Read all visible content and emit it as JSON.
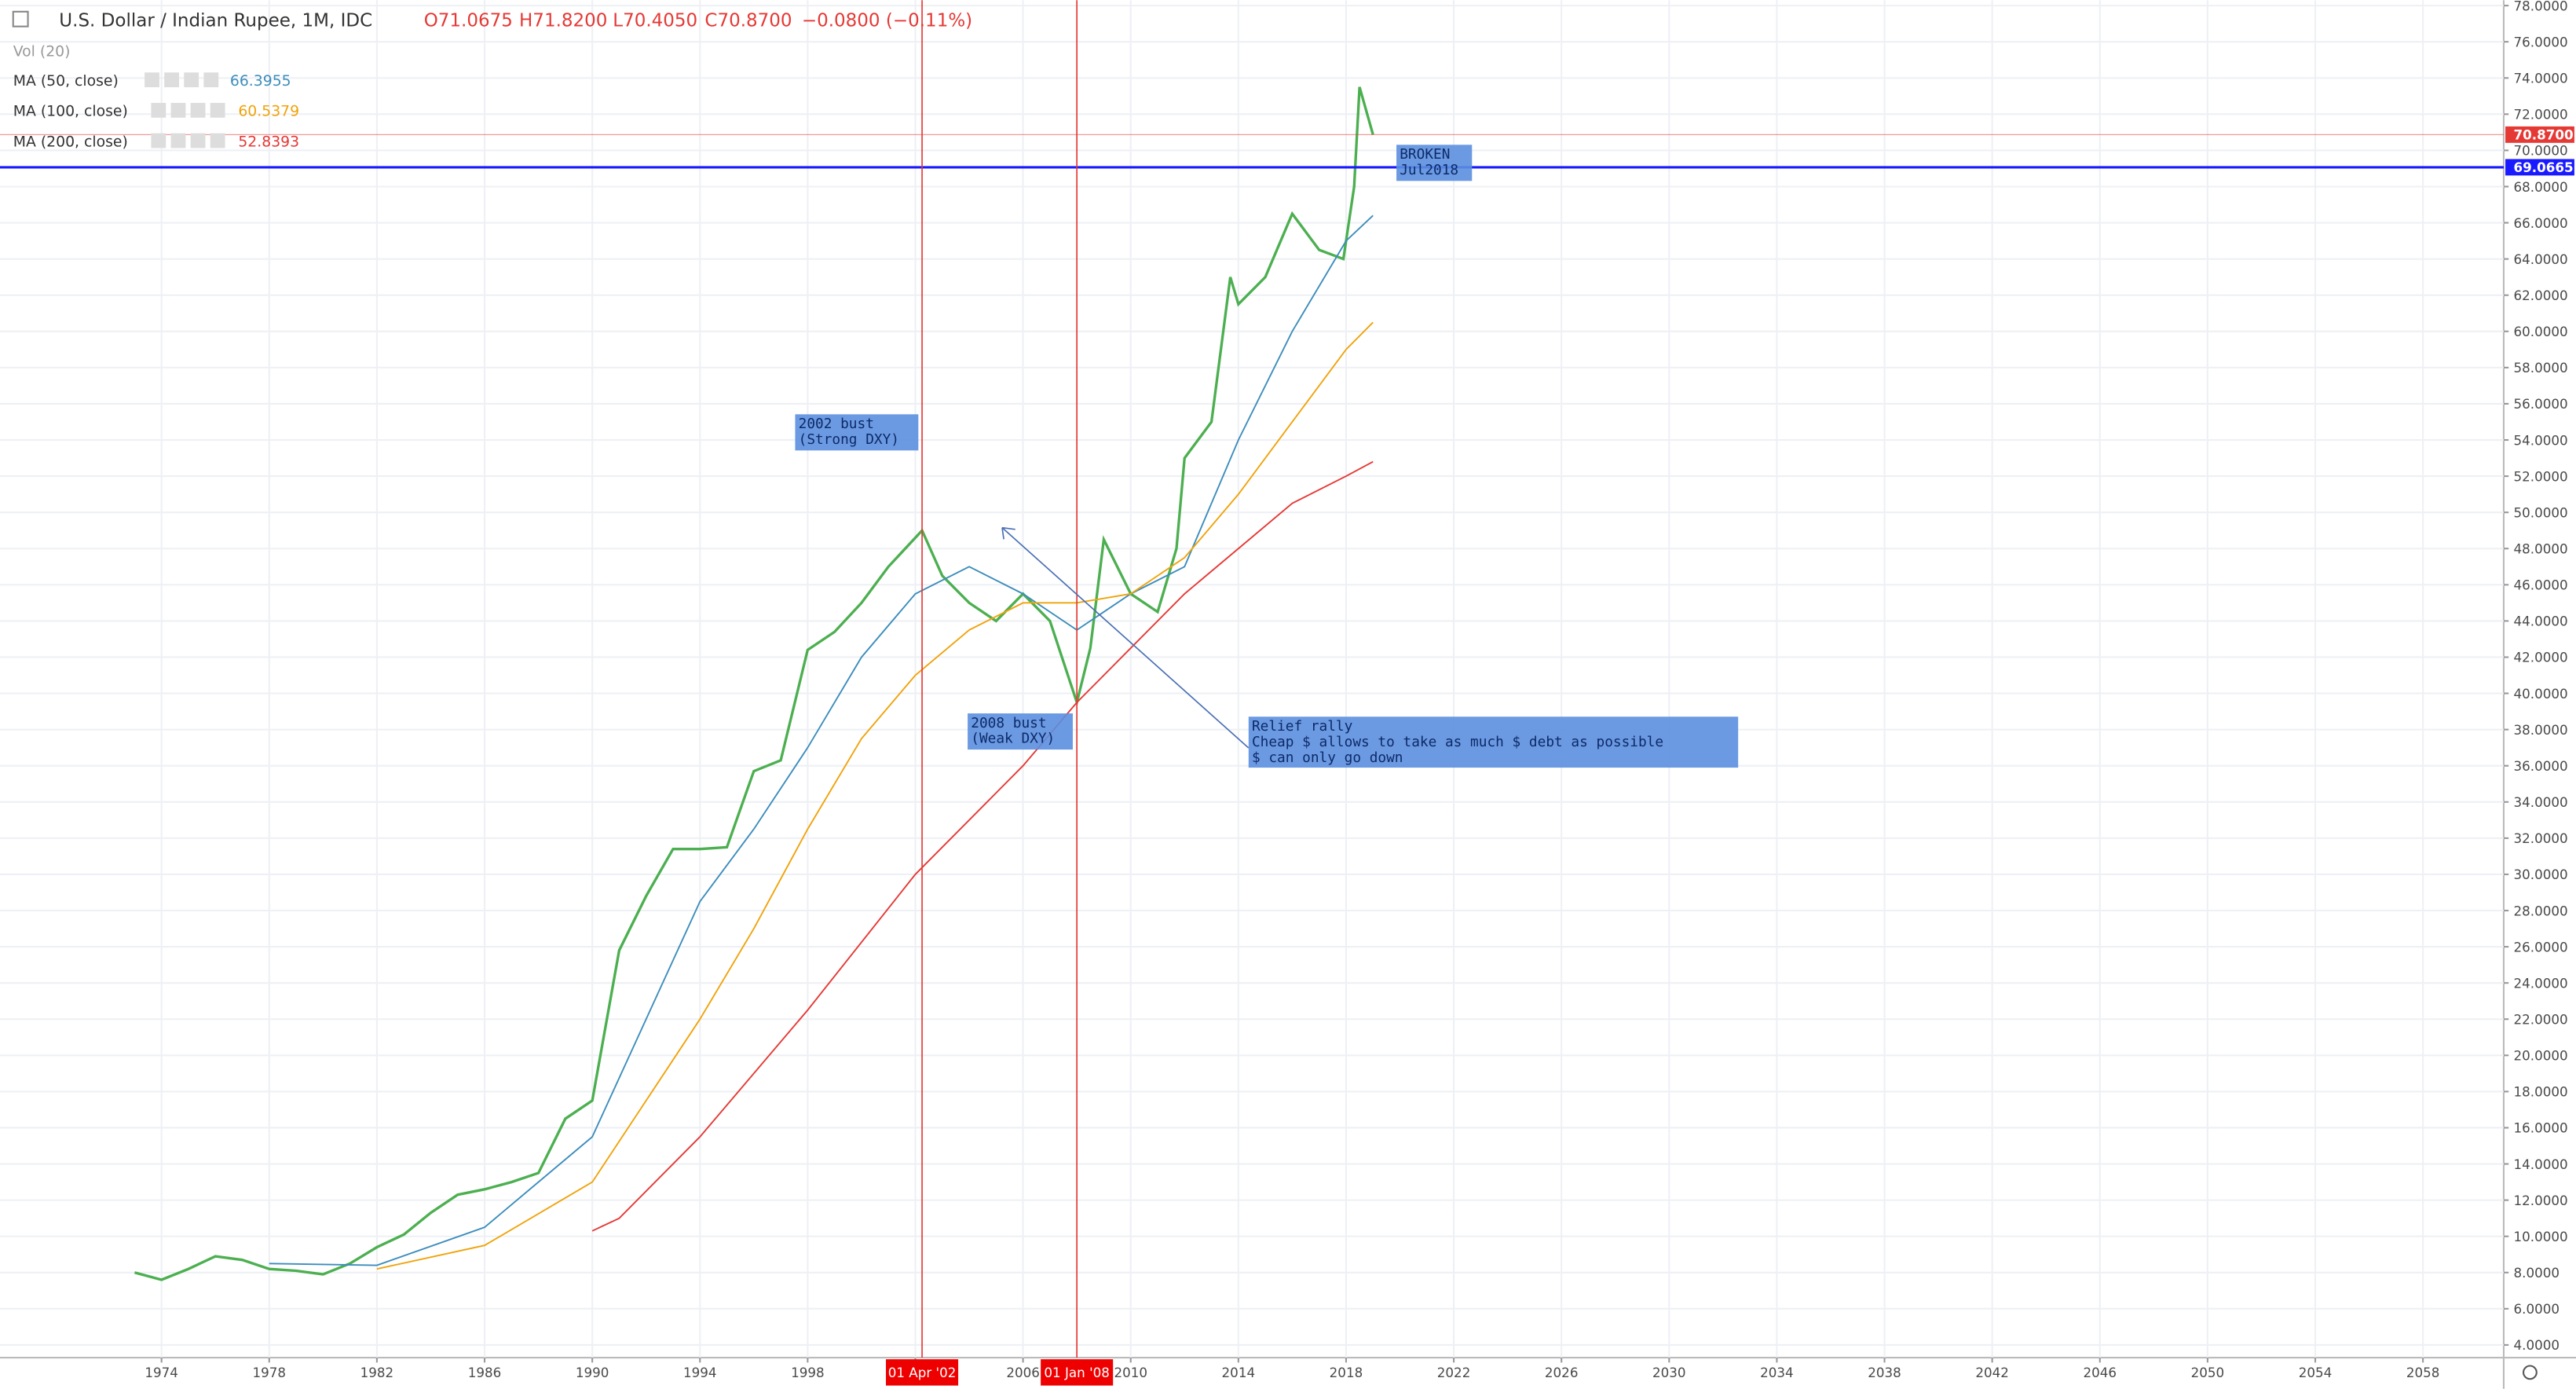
{
  "chart_data": {
    "type": "line",
    "header": {
      "title": "U.S. Dollar / Indian Rupee, 1M, IDC",
      "open": "O71.0675",
      "high": "H71.8200",
      "low": "L70.4050",
      "close": "C70.8700",
      "change": "−0.0800 (−0.11%)",
      "volume": "Vol (20)",
      "studies": [
        {
          "name": "MA (50, close)",
          "value": "66.3955",
          "color": "#3c8dbc"
        },
        {
          "name": "MA (100, close)",
          "value": "60.5379",
          "color": "#f0a30a"
        },
        {
          "name": "MA (200, close)",
          "value": "52.8393",
          "color": "#e53935"
        }
      ]
    },
    "xlim": [
      1968,
      2061
    ],
    "ylim": [
      3.3,
      78.3
    ],
    "xticks": [
      1974,
      1978,
      1982,
      1986,
      1990,
      1994,
      1998,
      2002,
      2006,
      2010,
      2014,
      2018,
      2022,
      2026,
      2030,
      2034,
      2038,
      2042,
      2046,
      2050,
      2054,
      2058
    ],
    "yticks": [
      {
        "value": 4,
        "label": "4.0000"
      },
      {
        "value": 6,
        "label": "6.0000"
      },
      {
        "value": 8,
        "label": "8.0000"
      },
      {
        "value": 10,
        "label": "10.0000"
      },
      {
        "value": 12,
        "label": "12.0000"
      },
      {
        "value": 14,
        "label": "14.0000"
      },
      {
        "value": 16,
        "label": "16.0000"
      },
      {
        "value": 18,
        "label": "18.0000"
      },
      {
        "value": 20,
        "label": "20.0000"
      },
      {
        "value": 22,
        "label": "22.0000"
      },
      {
        "value": 24,
        "label": "24.0000"
      },
      {
        "value": 26,
        "label": "26.0000"
      },
      {
        "value": 28,
        "label": "28.0000"
      },
      {
        "value": 30,
        "label": "30.0000"
      },
      {
        "value": 32,
        "label": "32.0000"
      },
      {
        "value": 34,
        "label": "34.0000"
      },
      {
        "value": 36,
        "label": "36.0000"
      },
      {
        "value": 38,
        "label": "38.0000"
      },
      {
        "value": 40,
        "label": "40.0000"
      },
      {
        "value": 42,
        "label": "42.0000"
      },
      {
        "value": 44,
        "label": "44.0000"
      },
      {
        "value": 46,
        "label": "46.0000"
      },
      {
        "value": 48,
        "label": "48.0000"
      },
      {
        "value": 50,
        "label": "50.0000"
      },
      {
        "value": 52,
        "label": "52.0000"
      },
      {
        "value": 54,
        "label": "54.0000"
      },
      {
        "value": 56,
        "label": "56.0000"
      },
      {
        "value": 58,
        "label": "58.0000"
      },
      {
        "value": 60,
        "label": "60.0000"
      },
      {
        "value": 62,
        "label": "62.0000"
      },
      {
        "value": 64,
        "label": "64.0000"
      },
      {
        "value": 66,
        "label": "66.0000"
      },
      {
        "value": 68,
        "label": "68.0000"
      },
      {
        "value": 70,
        "label": "70.0000"
      },
      {
        "value": 72,
        "label": "72.0000"
      },
      {
        "value": 74,
        "label": "74.0000"
      },
      {
        "value": 76,
        "label": "76.0000"
      },
      {
        "value": 78,
        "label": "78.0000"
      }
    ],
    "grid": true,
    "series": [
      {
        "name": "USDINR",
        "color": "#4caf50",
        "x": [
          1973,
          1974,
          1975,
          1976,
          1977,
          1978,
          1979,
          1980,
          1981,
          1982,
          1983,
          1984,
          1985,
          1986,
          1987,
          1988,
          1989,
          1990,
          1991,
          1992,
          1993,
          1994,
          1995,
          1996,
          1997,
          1998,
          1999,
          2000,
          2001,
          2002.25,
          2003,
          2004,
          2005,
          2006,
          2007,
          2008,
          2008.5,
          2009,
          2010,
          2011,
          2011.7,
          2012,
          2013,
          2013.7,
          2014,
          2015,
          2016,
          2017,
          2017.9,
          2018.3,
          2018.5,
          2019
        ],
        "values": [
          8.0,
          7.6,
          8.2,
          8.9,
          8.7,
          8.2,
          8.1,
          7.9,
          8.5,
          9.4,
          10.1,
          11.3,
          12.3,
          12.6,
          13.0,
          13.5,
          16.5,
          17.5,
          25.8,
          28.8,
          31.4,
          31.4,
          31.5,
          35.7,
          36.3,
          42.4,
          43.4,
          45.0,
          47.0,
          49.0,
          46.5,
          45.0,
          44.0,
          45.5,
          44.0,
          39.5,
          42.5,
          48.5,
          45.5,
          44.5,
          48.0,
          53.0,
          55.0,
          63.0,
          61.5,
          63.0,
          66.5,
          64.5,
          64.0,
          68.0,
          73.5,
          70.87
        ]
      },
      {
        "name": "MA (50, close)",
        "color": "#3c8dbc",
        "x": [
          1978,
          1982,
          1986,
          1990,
          1992,
          1994,
          1996,
          1998,
          2000,
          2002,
          2004,
          2006,
          2008,
          2010,
          2012,
          2014,
          2016,
          2018,
          2019
        ],
        "values": [
          8.5,
          8.4,
          10.5,
          15.5,
          22,
          28.5,
          32.5,
          37,
          42,
          45.5,
          47,
          45.5,
          43.5,
          45.5,
          47,
          54,
          60,
          65,
          66.4
        ]
      },
      {
        "name": "MA (100, close)",
        "color": "#f0a30a",
        "x": [
          1982,
          1986,
          1990,
          1992,
          1994,
          1996,
          1998,
          2000,
          2002,
          2004,
          2006,
          2008,
          2010,
          2012,
          2014,
          2016,
          2018,
          2019
        ],
        "values": [
          8.2,
          9.5,
          13,
          17.5,
          22,
          27,
          32.5,
          37.5,
          41,
          43.5,
          45,
          45,
          45.5,
          47.5,
          51,
          55,
          59,
          60.5
        ]
      },
      {
        "name": "MA (200, close)",
        "color": "#e53935",
        "x": [
          1990,
          1991,
          1994,
          1998,
          2002,
          2006,
          2008,
          2010,
          2012,
          2014,
          2016,
          2018,
          2019
        ],
        "values": [
          10.3,
          11,
          15.5,
          22.5,
          30,
          36,
          39.5,
          42.5,
          45.5,
          48,
          50.5,
          52,
          52.8
        ]
      }
    ],
    "hlines": [
      {
        "value": 69.0665,
        "color": "#1a1aff"
      },
      {
        "value": {
          "value": 70.87,
          "label": "70.8700"
        },
        "color": "#e53935"
      }
    ],
    "vlines": [
      {
        "x": 2002.25,
        "label": "01 Apr '02"
      },
      {
        "x": 2008,
        "label": "01 Jan '08"
      }
    ],
    "annotations": [
      {
        "lines": [
          "2002 bust",
          "(Strong DXY)"
        ]
      },
      {
        "lines": [
          "2008 bust",
          "(Weak DXY)"
        ]
      },
      {
        "lines": [
          "Relief rally",
          "Cheap $ allows to take as much $ debt as possible",
          "$ can only go down"
        ]
      },
      {
        "lines": [
          "BROKEN",
          "Jul2018"
        ]
      }
    ]
  }
}
